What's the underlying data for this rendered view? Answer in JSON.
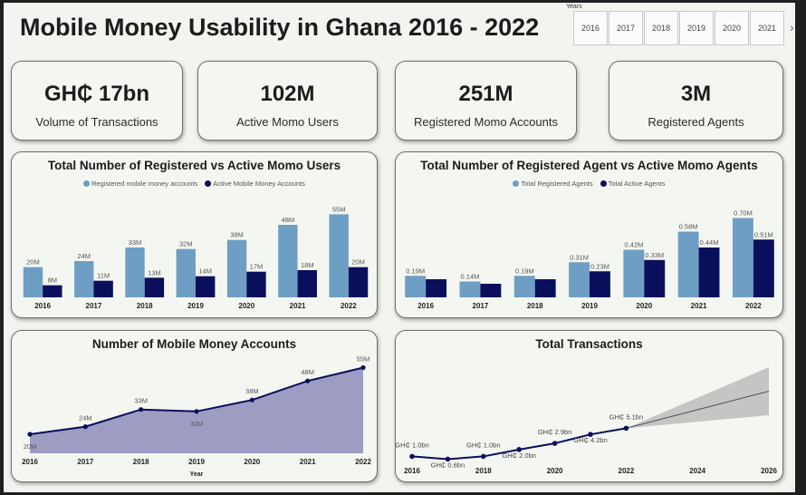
{
  "title": "Mobile Money Usability in Ghana 2016 - 2022",
  "slicer": {
    "caption": "Years",
    "years": [
      "2016",
      "2017",
      "2018",
      "2019",
      "2020",
      "2021"
    ],
    "arrow": "›"
  },
  "kpis": [
    {
      "value": "GH₵ 17bn",
      "label": "Volume of Transactions"
    },
    {
      "value": "102M",
      "label": "Active Momo Users"
    },
    {
      "value": "251M",
      "label": "Registered Momo Accounts"
    },
    {
      "value": "3M",
      "label": "Registered Agents"
    }
  ],
  "colors": {
    "light": "#6f9ec4",
    "dark": "#0a0f5c",
    "area": "#9d9dc3",
    "forecast": "#c4c6c4"
  },
  "chart_data": [
    {
      "type": "bar",
      "title": "Total Number of Registered vs Active Momo Users",
      "categories": [
        "2016",
        "2017",
        "2018",
        "2019",
        "2020",
        "2021",
        "2022"
      ],
      "series": [
        {
          "name": "Registered mobile money accounts",
          "values": [
            20,
            24,
            33,
            32,
            38,
            48,
            55
          ],
          "labels": [
            "20M",
            "24M",
            "33M",
            "32M",
            "38M",
            "48M",
            "55M"
          ]
        },
        {
          "name": "Active Mobile Money Accounts",
          "values": [
            8,
            11,
            13,
            14,
            17,
            18,
            20
          ],
          "labels": [
            "8M",
            "11M",
            "13M",
            "14M",
            "17M",
            "18M",
            "20M"
          ]
        }
      ],
      "ylim": [
        0,
        60
      ],
      "legend": "top-center"
    },
    {
      "type": "bar",
      "title": "Total Number of Registered Agent vs Active Momo Agents",
      "categories": [
        "2016",
        "2017",
        "2018",
        "2019",
        "2020",
        "2021",
        "2022"
      ],
      "series": [
        {
          "name": "Total Registered Agents",
          "values": [
            0.19,
            0.14,
            0.19,
            0.31,
            0.42,
            0.58,
            0.7
          ],
          "labels": [
            "0.19M",
            "0.14M",
            "0.19M",
            "0.31M",
            "0.42M",
            "0.58M",
            "0.70M"
          ]
        },
        {
          "name": "Total Active Agents",
          "values": [
            0.16,
            0.12,
            0.16,
            0.23,
            0.33,
            0.44,
            0.51
          ],
          "labels": [
            "",
            "",
            "",
            "0.23M",
            "0.33M",
            "0.44M",
            "0.51M"
          ]
        }
      ],
      "ylim": [
        0,
        0.8
      ],
      "legend": "top-center"
    },
    {
      "type": "area",
      "title": "Number of Mobile Money Accounts",
      "x": [
        "2016",
        "2017",
        "2018",
        "2019",
        "2020",
        "2021",
        "2022"
      ],
      "values": [
        20,
        24,
        33,
        32,
        38,
        48,
        55
      ],
      "labels": [
        "20M",
        "24M",
        "33M",
        "32M",
        "38M",
        "48M",
        "55M"
      ],
      "xlabel": "Year",
      "ylim": [
        10,
        60
      ]
    },
    {
      "type": "line",
      "title": "Total Transactions",
      "x": [
        2016,
        2017,
        2018,
        2019,
        2020,
        2021,
        2022
      ],
      "values": [
        1.0,
        0.6,
        1.0,
        2.0,
        2.9,
        4.2,
        5.1
      ],
      "labels": [
        "GH₵ 1.0bn",
        "GH₵ 0.6bn",
        "GH₵ 1.0bn",
        "GH₵ 2.0bn",
        "GH₵ 2.9bn",
        "GH₵ 4.2bn",
        "GH₵ 5.1bn"
      ],
      "forecast": {
        "x": [
          2022,
          2026
        ],
        "values": [
          5.1,
          10.5
        ],
        "upper": [
          5.1,
          14.0
        ],
        "lower": [
          5.1,
          7.0
        ]
      },
      "xticks": [
        "2016",
        "2018",
        "2020",
        "2022",
        "2024",
        "2026"
      ],
      "xlim": [
        2016,
        2026
      ],
      "ylim": [
        0,
        14
      ]
    }
  ]
}
